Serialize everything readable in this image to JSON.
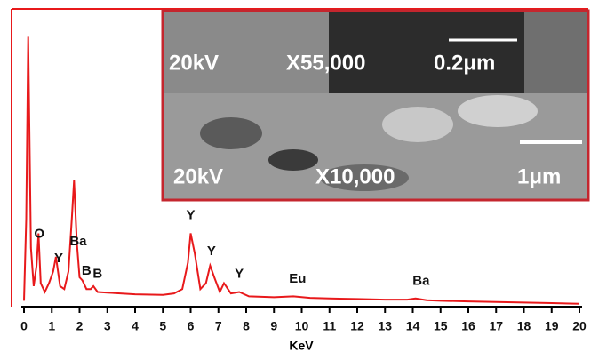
{
  "chart_data": {
    "type": "line",
    "color": "#e8191b",
    "xlabel": "KeV",
    "x": [
      0,
      0.08,
      0.15,
      0.25,
      0.35,
      0.45,
      0.52,
      0.6,
      0.75,
      0.9,
      1.05,
      1.15,
      1.3,
      1.45,
      1.6,
      1.72,
      1.8,
      1.9,
      2.0,
      2.1,
      2.25,
      2.4,
      2.5,
      2.65,
      3.0,
      4.0,
      5.0,
      5.4,
      5.7,
      5.9,
      6.0,
      6.15,
      6.35,
      6.55,
      6.7,
      6.85,
      7.05,
      7.2,
      7.45,
      7.75,
      8.1,
      9.0,
      9.7,
      10.3,
      11.0,
      12.0,
      13.0,
      13.8,
      14.1,
      14.5,
      15.0,
      16.0,
      17.0,
      18.0,
      19.0,
      20.0
    ],
    "values": [
      2,
      30,
      92,
      20,
      7,
      14,
      25,
      8,
      5,
      8,
      12,
      17,
      7,
      6,
      12,
      30,
      43,
      22,
      10,
      9,
      6,
      6,
      7,
      5,
      4.8,
      4.2,
      4.0,
      4.5,
      6,
      15,
      25,
      18,
      6,
      8,
      14,
      10,
      5,
      8,
      4.5,
      5,
      3.5,
      3.2,
      3.5,
      3,
      2.8,
      2.6,
      2.4,
      2.4,
      2.8,
      2.2,
      2,
      1.8,
      1.6,
      1.4,
      1.2,
      1
    ],
    "xlim": [
      0,
      20
    ],
    "ylim": [
      0,
      100
    ],
    "xticks": [
      0,
      1,
      2,
      3,
      4,
      5,
      6,
      7,
      8,
      9,
      10,
      11,
      12,
      13,
      14,
      15,
      16,
      17,
      18,
      19,
      20
    ],
    "annotations": [
      {
        "text": "O",
        "x": 0.55
      },
      {
        "text": "Y",
        "x": 1.25
      },
      {
        "text": "Ba",
        "x": 1.95
      },
      {
        "text": "B",
        "x": 2.25
      },
      {
        "text": "B",
        "x": 2.65
      },
      {
        "text": "Y",
        "x": 6.0
      },
      {
        "text": "Y",
        "x": 6.75
      },
      {
        "text": "Y",
        "x": 7.75
      },
      {
        "text": "Eu",
        "x": 9.85
      },
      {
        "text": "Ba",
        "x": 14.3
      }
    ],
    "inset_panels": [
      {
        "texts": [
          "20kV",
          "X55,000",
          "0.2μm"
        ]
      },
      {
        "texts": [
          "20kV",
          "X10,000",
          "1μm"
        ]
      }
    ]
  }
}
